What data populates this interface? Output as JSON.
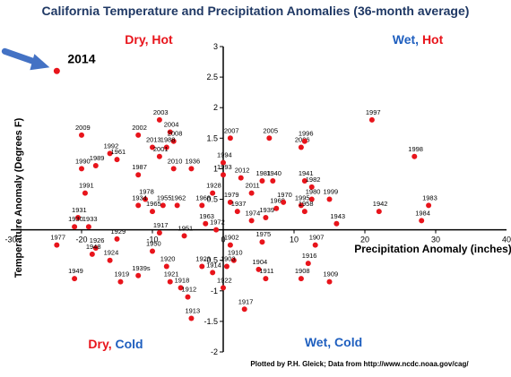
{
  "chart_data": {
    "type": "scatter",
    "title": "California Temperature and Precipitation Anomalies (36-month average)",
    "xlabel": "Precipitation Anomaly (inches)",
    "ylabel": "Temperature Anomaly (Degrees F)",
    "xlim": [
      -30,
      40
    ],
    "ylim": [
      -2,
      3
    ],
    "x_ticks": [
      -30,
      -20,
      -10,
      0,
      10,
      20,
      30,
      40
    ],
    "y_ticks": [
      -2,
      -1.5,
      -1,
      -0.5,
      0.5,
      1,
      1.5,
      2,
      2.5,
      3
    ],
    "grid": false,
    "point_color": "#e8141b",
    "quadrants": {
      "top_left": [
        {
          "text": "Dry, ",
          "color": "#e8141b"
        },
        {
          "text": "Hot",
          "color": "#e8141b"
        }
      ],
      "top_right": [
        {
          "text": "Wet, ",
          "color": "#1f5fbf"
        },
        {
          "text": "Hot",
          "color": "#e8141b"
        }
      ],
      "bottom_left": [
        {
          "text": "Dry, ",
          "color": "#e8141b"
        },
        {
          "text": "Cold",
          "color": "#1f5fbf"
        }
      ],
      "bottom_right": [
        {
          "text": "Wet, Cold",
          "color": "#1f5fbf"
        }
      ]
    },
    "highlight": {
      "label": "2014",
      "x": -23.5,
      "y": 2.6,
      "arrow_color": "#4472c4"
    },
    "credit": "Plotted by P.H. Gleick; Data from http://www.ncdc.noaa.gov/cag/",
    "points": [
      {
        "label": "1997",
        "x": 21.0,
        "y": 1.8
      },
      {
        "label": "1998",
        "x": 27.0,
        "y": 1.2
      },
      {
        "label": "1983",
        "x": 29.0,
        "y": 0.4
      },
      {
        "label": "1942",
        "x": 22.0,
        "y": 0.3
      },
      {
        "label": "1984",
        "x": 28.0,
        "y": 0.15
      },
      {
        "label": "1943",
        "x": 16.0,
        "y": 0.1
      },
      {
        "label": "1999",
        "x": 15.0,
        "y": 0.5
      },
      {
        "label": "2003",
        "x": -9.0,
        "y": 1.8
      },
      {
        "label": "2002",
        "x": -12.0,
        "y": 1.55
      },
      {
        "label": "2004",
        "x": -7.5,
        "y": 1.6
      },
      {
        "label": "2009",
        "x": -20.0,
        "y": 1.55
      },
      {
        "label": "2008",
        "x": -7.0,
        "y": 1.45
      },
      {
        "label": "2013",
        "x": -10.0,
        "y": 1.35
      },
      {
        "label": "1988",
        "x": -8.0,
        "y": 1.35
      },
      {
        "label": "2001",
        "x": -9.0,
        "y": 1.2
      },
      {
        "label": "2010",
        "x": -7.0,
        "y": 1.0
      },
      {
        "label": "1936",
        "x": -4.5,
        "y": 1.0
      },
      {
        "label": "1992",
        "x": -16.0,
        "y": 1.25
      },
      {
        "label": "1961",
        "x": -15.0,
        "y": 1.15
      },
      {
        "label": "1989",
        "x": -18.0,
        "y": 1.05
      },
      {
        "label": "1990",
        "x": -20.0,
        "y": 1.0
      },
      {
        "label": "1987",
        "x": -12.0,
        "y": 0.9
      },
      {
        "label": "1991",
        "x": -19.5,
        "y": 0.6
      },
      {
        "label": "1931",
        "x": -20.5,
        "y": 0.2
      },
      {
        "label": "1930",
        "x": -21.0,
        "y": 0.05
      },
      {
        "label": "1933",
        "x": -19.0,
        "y": 0.05
      },
      {
        "label": "1978",
        "x": -11.0,
        "y": 0.5
      },
      {
        "label": "1934",
        "x": -12.0,
        "y": 0.4
      },
      {
        "label": "1955",
        "x": -8.5,
        "y": 0.4
      },
      {
        "label": "1962",
        "x": -6.5,
        "y": 0.4
      },
      {
        "label": "1968",
        "x": -3.0,
        "y": 0.4
      },
      {
        "label": "1965",
        "x": -10.0,
        "y": 0.3
      },
      {
        "label": "1928",
        "x": -1.5,
        "y": 0.6
      },
      {
        "label": "1963",
        "x": -2.5,
        "y": 0.1
      },
      {
        "label": "1972",
        "x": -1.0,
        "y": 0.0
      },
      {
        "label": "1917",
        "x": -9.0,
        "y": -0.05
      },
      {
        "label": "1929",
        "x": -15.0,
        "y": -0.15
      },
      {
        "label": "1926",
        "x": -18.0,
        "y": -0.3
      },
      {
        "label": "1977",
        "x": -23.5,
        "y": -0.25
      },
      {
        "label": "1948",
        "x": -18.5,
        "y": -0.4
      },
      {
        "label": "1950",
        "x": -10.0,
        "y": -0.35
      },
      {
        "label": "1924",
        "x": -16.0,
        "y": -0.5
      },
      {
        "label": "1949",
        "x": -21.0,
        "y": -0.8
      },
      {
        "label": "1919",
        "x": -14.5,
        "y": -0.85
      },
      {
        "label": "1939s",
        "x": -12.0,
        "y": -0.75
      },
      {
        "label": "1920",
        "x": -8.0,
        "y": -0.6
      },
      {
        "label": "1921",
        "x": -7.5,
        "y": -0.85
      },
      {
        "label": "1918",
        "x": -6.0,
        "y": -0.95
      },
      {
        "label": "1913",
        "x": -4.5,
        "y": -1.45
      },
      {
        "label": "1912",
        "x": -5.0,
        "y": -1.1
      },
      {
        "label": "1951",
        "x": -5.5,
        "y": -0.1
      },
      {
        "label": "1923",
        "x": -3.0,
        "y": -0.6
      },
      {
        "label": "1914",
        "x": -1.5,
        "y": -0.7
      },
      {
        "label": "1922",
        "x": 0.0,
        "y": -0.95
      },
      {
        "label": "1910",
        "x": 1.5,
        "y": -0.5
      },
      {
        "label": "1902",
        "x": 1.0,
        "y": -0.25
      },
      {
        "label": "1903",
        "x": 0.5,
        "y": -0.6
      },
      {
        "label": "2007",
        "x": 1.0,
        "y": 1.5
      },
      {
        "label": "1994",
        "x": 0.0,
        "y": 1.1
      },
      {
        "label": "1993",
        "x": 0.0,
        "y": 0.9
      },
      {
        "label": "2012",
        "x": 2.5,
        "y": 0.85
      },
      {
        "label": "2011",
        "x": 4.0,
        "y": 0.6
      },
      {
        "label": "1940",
        "x": 7.0,
        "y": 0.8
      },
      {
        "label": "1981",
        "x": 5.5,
        "y": 0.8
      },
      {
        "label": "1979",
        "x": 1.0,
        "y": 0.45
      },
      {
        "label": "1937",
        "x": 2.0,
        "y": 0.3
      },
      {
        "label": "1974",
        "x": 4.0,
        "y": 0.15
      },
      {
        "label": "1939",
        "x": 6.0,
        "y": 0.2
      },
      {
        "label": "1969",
        "x": 7.5,
        "y": 0.35
      },
      {
        "label": "1970",
        "x": 8.5,
        "y": 0.45
      },
      {
        "label": "1975",
        "x": 5.5,
        "y": -0.2
      },
      {
        "label": "1904",
        "x": 5.0,
        "y": -0.65
      },
      {
        "label": "1911",
        "x": 6.0,
        "y": -0.8
      },
      {
        "label": "1917",
        "x": 3.0,
        "y": -1.3
      },
      {
        "label": "2005",
        "x": 6.5,
        "y": 1.5
      },
      {
        "label": "2006",
        "x": 11.0,
        "y": 1.35
      },
      {
        "label": "1996",
        "x": 11.5,
        "y": 1.45
      },
      {
        "label": "1941",
        "x": 11.5,
        "y": 0.8
      },
      {
        "label": "1982",
        "x": 12.5,
        "y": 0.7
      },
      {
        "label": "1980",
        "x": 12.5,
        "y": 0.5
      },
      {
        "label": "1995",
        "x": 11.0,
        "y": 0.4
      },
      {
        "label": "1958",
        "x": 11.5,
        "y": 0.3
      },
      {
        "label": "1907",
        "x": 13.0,
        "y": -0.25
      },
      {
        "label": "1916",
        "x": 12.0,
        "y": -0.55
      },
      {
        "label": "1908",
        "x": 11.0,
        "y": -0.8
      },
      {
        "label": "1909",
        "x": 15.0,
        "y": -0.85
      }
    ]
  }
}
